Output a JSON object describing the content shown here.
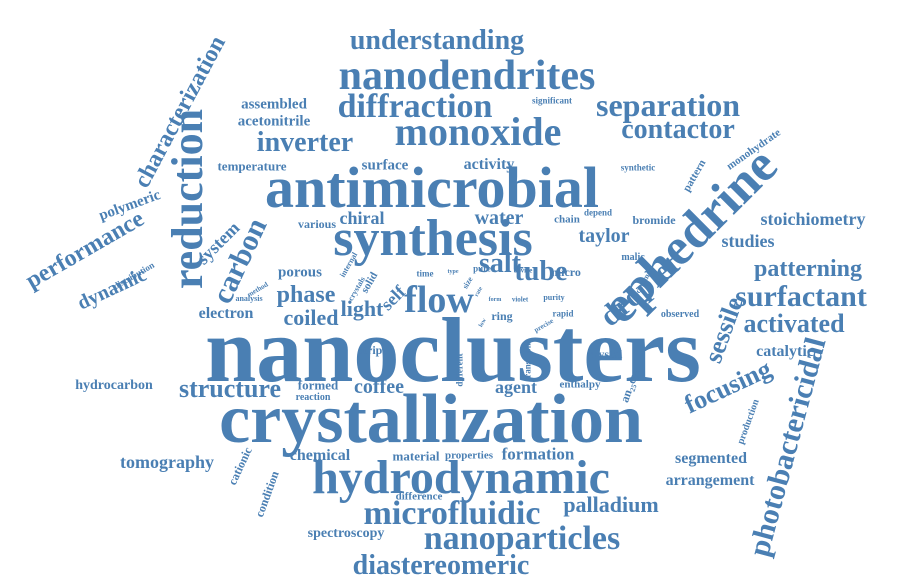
{
  "color": "#4a7fb3",
  "words": [
    {
      "id": "nanoclusters",
      "text": "nanoclusters"
    },
    {
      "id": "crystallization",
      "text": "crystallization"
    },
    {
      "id": "antimicrobial",
      "text": "antimicrobial"
    },
    {
      "id": "synthesis",
      "text": "synthesis"
    },
    {
      "id": "ephedrine",
      "text": "ephedrine"
    },
    {
      "id": "hydrodynamic",
      "text": "hydrodynamic"
    },
    {
      "id": "nanodendrites",
      "text": "nanodendrites"
    },
    {
      "id": "monoxide",
      "text": "monoxide"
    },
    {
      "id": "diffraction",
      "text": "diffraction"
    },
    {
      "id": "reduction",
      "text": "reduction"
    },
    {
      "id": "microfluidic",
      "text": "microfluidic"
    },
    {
      "id": "nanoparticles",
      "text": "nanoparticles"
    },
    {
      "id": "understanding",
      "text": "understanding"
    },
    {
      "id": "separation",
      "text": "separation"
    },
    {
      "id": "contactor",
      "text": "contactor"
    },
    {
      "id": "diastereomeric",
      "text": "diastereomeric"
    },
    {
      "id": "flow",
      "text": "flow"
    },
    {
      "id": "surfactant",
      "text": "surfactant"
    },
    {
      "id": "photobactericidal",
      "text": "photobactericidal"
    },
    {
      "id": "characterization",
      "text": "characterization"
    },
    {
      "id": "carbon",
      "text": "carbon"
    },
    {
      "id": "inverter",
      "text": "inverter"
    },
    {
      "id": "tube",
      "text": "tube"
    },
    {
      "id": "salt",
      "text": "salt"
    },
    {
      "id": "droplet",
      "text": "droplet"
    },
    {
      "id": "structure",
      "text": "structure"
    },
    {
      "id": "activated",
      "text": "activated"
    },
    {
      "id": "performance",
      "text": "performance"
    },
    {
      "id": "patterning",
      "text": "patterning"
    },
    {
      "id": "phase",
      "text": "phase"
    },
    {
      "id": "focusing",
      "text": "focusing"
    },
    {
      "id": "palladium",
      "text": "palladium"
    },
    {
      "id": "sessile",
      "text": "sessile"
    },
    {
      "id": "stoichiometry",
      "text": "stoichiometry"
    },
    {
      "id": "dynamic",
      "text": "dynamic"
    },
    {
      "id": "system",
      "text": "system"
    },
    {
      "id": "coiled",
      "text": "coiled"
    },
    {
      "id": "light",
      "text": "light"
    },
    {
      "id": "water",
      "text": "water"
    },
    {
      "id": "taylor",
      "text": "taylor"
    },
    {
      "id": "studies",
      "text": "studies"
    },
    {
      "id": "tomography",
      "text": "tomography"
    },
    {
      "id": "coffee",
      "text": "coffee"
    },
    {
      "id": "agent",
      "text": "agent"
    },
    {
      "id": "formation",
      "text": "formation"
    },
    {
      "id": "segmented",
      "text": "segmented"
    },
    {
      "id": "arrangement",
      "text": "arrangement"
    },
    {
      "id": "chemical",
      "text": "chemical"
    },
    {
      "id": "spectroscopy",
      "text": "spectroscopy"
    },
    {
      "id": "electron",
      "text": "electron"
    },
    {
      "id": "polymeric",
      "text": "polymeric"
    },
    {
      "id": "self",
      "text": "self"
    },
    {
      "id": "chiral",
      "text": "chiral"
    },
    {
      "id": "activity",
      "text": "activity"
    },
    {
      "id": "surface",
      "text": "surface"
    },
    {
      "id": "assembled",
      "text": "assembled"
    },
    {
      "id": "acetonitrile",
      "text": "acetonitrile"
    },
    {
      "id": "temperature",
      "text": "temperature"
    },
    {
      "id": "porous",
      "text": "porous"
    },
    {
      "id": "catalytic",
      "text": "catalytic"
    },
    {
      "id": "hydrocarbon",
      "text": "hydrocarbon"
    },
    {
      "id": "material",
      "text": "material"
    },
    {
      "id": "properties",
      "text": "properties"
    },
    {
      "id": "stripe",
      "text": "stripe"
    },
    {
      "id": "crystal",
      "text": "crystal"
    },
    {
      "id": "cationic",
      "text": "cationic"
    },
    {
      "id": "condition",
      "text": "condition"
    },
    {
      "id": "formed",
      "text": "formed"
    },
    {
      "id": "reaction",
      "text": "reaction"
    },
    {
      "id": "difference",
      "text": "difference"
    },
    {
      "id": "enthalpy",
      "text": "enthalpy"
    },
    {
      "id": "an2scys",
      "text": "an₂₅cys"
    },
    {
      "id": "production",
      "text": "production"
    },
    {
      "id": "monohydrate",
      "text": "monohydrate"
    },
    {
      "id": "pattern",
      "text": "pattern"
    },
    {
      "id": "synthetic",
      "text": "synthetic"
    },
    {
      "id": "significant",
      "text": "significant"
    },
    {
      "id": "bromide",
      "text": "bromide"
    },
    {
      "id": "depend",
      "text": "depend"
    },
    {
      "id": "chain",
      "text": "chain"
    },
    {
      "id": "malic",
      "text": "malic"
    },
    {
      "id": "common",
      "text": "common"
    },
    {
      "id": "observed",
      "text": "observed"
    },
    {
      "id": "micro",
      "text": "micro"
    },
    {
      "id": "various",
      "text": "various"
    },
    {
      "id": "distribution",
      "text": "distribution"
    },
    {
      "id": "analysis",
      "text": "analysis"
    },
    {
      "id": "method",
      "text": "method"
    },
    {
      "id": "internal",
      "text": "internal"
    },
    {
      "id": "crystals",
      "text": "crystals"
    },
    {
      "id": "solid",
      "text": "solid"
    },
    {
      "id": "time",
      "text": "time"
    },
    {
      "id": "type",
      "text": "type"
    },
    {
      "id": "pure",
      "text": "pure"
    },
    {
      "id": "device",
      "text": "device"
    },
    {
      "id": "size",
      "text": "size"
    },
    {
      "id": "rate",
      "text": "rate"
    },
    {
      "id": "ring",
      "text": "ring"
    },
    {
      "id": "form",
      "text": "form"
    },
    {
      "id": "violet",
      "text": "violet"
    },
    {
      "id": "purity",
      "text": "purity"
    },
    {
      "id": "rapid",
      "text": "rapid"
    },
    {
      "id": "precise",
      "text": "precise"
    },
    {
      "id": "different",
      "text": "different"
    },
    {
      "id": "transition",
      "text": "transition"
    },
    {
      "id": "lows",
      "text": "low"
    }
  ]
}
